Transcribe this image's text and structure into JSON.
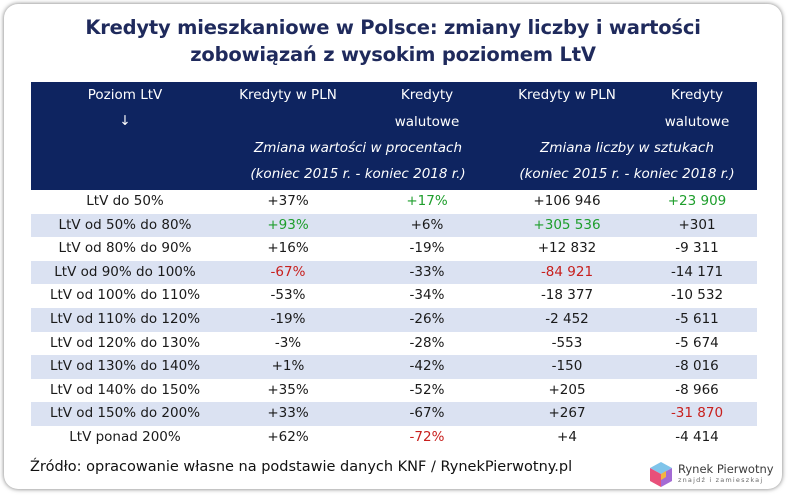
{
  "title_line1": "Kredyty mieszkaniowe w Polsce: zmiany liczby i wartości",
  "title_line2": "zobowiązań z wysokim poziomem LtV",
  "header": {
    "col0_line1": "Poziom LtV",
    "col0_arrow": "↓",
    "pln": "Kredyty w PLN",
    "fx_line1": "Kredyty",
    "fx_line2": "walutowe",
    "group1_line1": "Zmiana wartości w procentach",
    "group1_line2": "(koniec 2015 r. - koniec 2018 r.)",
    "pln2": "Kredyty w PLN",
    "fx2_line1": "Kredyty",
    "fx2_line2": "walutowe",
    "group2_line1": "Zmiana liczby w sztukach",
    "group2_line2": "(koniec 2015 r. - koniec 2018 r.)"
  },
  "colors": {
    "header_bg": "#0e2460",
    "title": "#1f2a5c",
    "alt_row": "#dbe2f2",
    "highlight_max": "#1e9e2c",
    "highlight_min": "#c8201e"
  },
  "chart_data": {
    "type": "table",
    "columns": [
      "Poziom LtV",
      "Kredyty w PLN (zmiana wartości)",
      "Kredyty walutowe (zmiana wartości)",
      "Kredyty w PLN (zmiana liczby)",
      "Kredyty walutowe (zmiana liczby)"
    ],
    "rows": [
      {
        "ltv": "LtV do 50%",
        "c1": "+37%",
        "c2": "+17%",
        "c3": "+106 946",
        "c4": "+23 909",
        "hl": [
          "",
          "green",
          "",
          "green"
        ]
      },
      {
        "ltv": "LtV od 50% do 80%",
        "c1": "+93%",
        "c2": "+6%",
        "c3": "+305 536",
        "c4": "+301",
        "hl": [
          "green",
          "",
          "green",
          ""
        ]
      },
      {
        "ltv": "LtV od 80% do 90%",
        "c1": "+16%",
        "c2": "-19%",
        "c3": "+12 832",
        "c4": "-9 311",
        "hl": [
          "",
          "",
          "",
          ""
        ]
      },
      {
        "ltv": "LtV od 90% do 100%",
        "c1": "-67%",
        "c2": "-33%",
        "c3": "-84 921",
        "c4": "-14 171",
        "hl": [
          "red",
          "",
          "red",
          ""
        ]
      },
      {
        "ltv": "LtV od 100% do 110%",
        "c1": "-53%",
        "c2": "-34%",
        "c3": "-18 377",
        "c4": "-10 532",
        "hl": [
          "",
          "",
          "",
          ""
        ]
      },
      {
        "ltv": "LtV od 110% do 120%",
        "c1": "-19%",
        "c2": "-26%",
        "c3": "-2 452",
        "c4": "-5 611",
        "hl": [
          "",
          "",
          "",
          ""
        ]
      },
      {
        "ltv": "LtV od 120% do 130%",
        "c1": "-3%",
        "c2": "-28%",
        "c3": "-553",
        "c4": "-5 674",
        "hl": [
          "",
          "",
          "",
          ""
        ]
      },
      {
        "ltv": "LtV od 130% do 140%",
        "c1": "+1%",
        "c2": "-42%",
        "c3": "-150",
        "c4": "-8 016",
        "hl": [
          "",
          "",
          "",
          ""
        ]
      },
      {
        "ltv": "LtV od 140% do 150%",
        "c1": "+35%",
        "c2": "-52%",
        "c3": "+205",
        "c4": "-8 966",
        "hl": [
          "",
          "",
          "",
          ""
        ]
      },
      {
        "ltv": "LtV od 150% do 200%",
        "c1": "+33%",
        "c2": "-67%",
        "c3": "+267",
        "c4": "-31 870",
        "hl": [
          "",
          "",
          "",
          "red"
        ]
      },
      {
        "ltv": "LtV ponad 200%",
        "c1": "+62%",
        "c2": "-72%",
        "c3": "+4",
        "c4": "-4 414",
        "hl": [
          "",
          "red",
          "",
          ""
        ]
      }
    ]
  },
  "source": "Źródło: opracowanie własne na podstawie danych KNF / RynekPierwotny.pl",
  "logo": {
    "name": "Rynek Pierwotny",
    "tagline": "znajdź i zamieszkaj"
  }
}
